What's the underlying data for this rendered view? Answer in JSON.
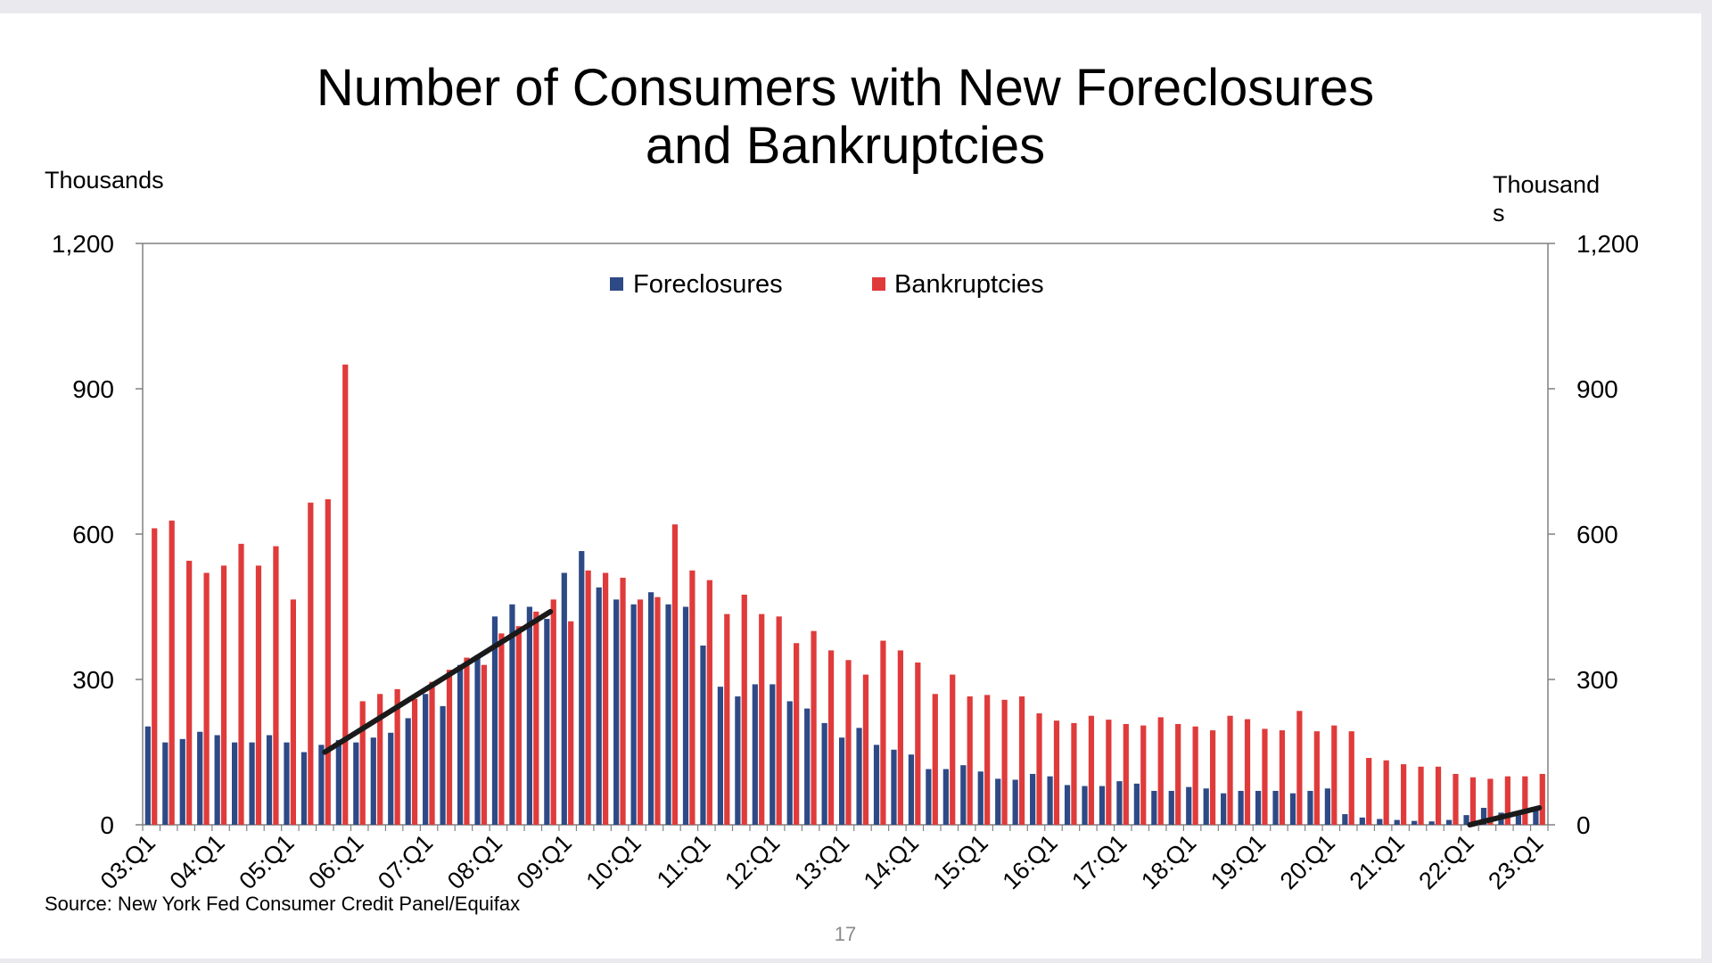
{
  "chart_data": {
    "type": "bar",
    "title_lines": [
      "Number of Consumers with New Foreclosures",
      "and Bankruptcies"
    ],
    "ylabel_left": "Thousands",
    "ylabel_right_lines": [
      "Thousand",
      "s"
    ],
    "ylim": [
      0,
      1200
    ],
    "yticks": [
      0,
      300,
      600,
      900,
      1200
    ],
    "ytick_labels": [
      "0",
      "300",
      "600",
      "900",
      "1,200"
    ],
    "xtick_labels": [
      "03:Q1",
      "04:Q1",
      "05:Q1",
      "06:Q1",
      "07:Q1",
      "08:Q1",
      "09:Q1",
      "10:Q1",
      "11:Q1",
      "12:Q1",
      "13:Q1",
      "14:Q1",
      "15:Q1",
      "16:Q1",
      "17:Q1",
      "18:Q1",
      "19:Q1",
      "20:Q1",
      "21:Q1",
      "22:Q1",
      "23:Q1"
    ],
    "legend_position": "top-center",
    "grid": false,
    "categories": [
      "03:Q1",
      "03:Q2",
      "03:Q3",
      "03:Q4",
      "04:Q1",
      "04:Q2",
      "04:Q3",
      "04:Q4",
      "05:Q1",
      "05:Q2",
      "05:Q3",
      "05:Q4",
      "06:Q1",
      "06:Q2",
      "06:Q3",
      "06:Q4",
      "07:Q1",
      "07:Q2",
      "07:Q3",
      "07:Q4",
      "08:Q1",
      "08:Q2",
      "08:Q3",
      "08:Q4",
      "09:Q1",
      "09:Q2",
      "09:Q3",
      "09:Q4",
      "10:Q1",
      "10:Q2",
      "10:Q3",
      "10:Q4",
      "11:Q1",
      "11:Q2",
      "11:Q3",
      "11:Q4",
      "12:Q1",
      "12:Q2",
      "12:Q3",
      "12:Q4",
      "13:Q1",
      "13:Q2",
      "13:Q3",
      "13:Q4",
      "14:Q1",
      "14:Q2",
      "14:Q3",
      "14:Q4",
      "15:Q1",
      "15:Q2",
      "15:Q3",
      "15:Q4",
      "16:Q1",
      "16:Q2",
      "16:Q3",
      "16:Q4",
      "17:Q1",
      "17:Q2",
      "17:Q3",
      "17:Q4",
      "18:Q1",
      "18:Q2",
      "18:Q3",
      "18:Q4",
      "19:Q1",
      "19:Q2",
      "19:Q3",
      "19:Q4",
      "20:Q1",
      "20:Q2",
      "20:Q3",
      "20:Q4",
      "21:Q1",
      "21:Q2",
      "21:Q3",
      "21:Q4",
      "22:Q1",
      "22:Q2",
      "22:Q3",
      "22:Q4",
      "23:Q1"
    ],
    "series": [
      {
        "name": "Foreclosures",
        "color": "#2e4a86",
        "values": [
          203,
          170,
          177,
          192,
          185,
          170,
          170,
          185,
          170,
          150,
          165,
          175,
          170,
          180,
          190,
          220,
          270,
          245,
          330,
          350,
          430,
          455,
          450,
          425,
          520,
          565,
          490,
          465,
          455,
          480,
          455,
          450,
          370,
          285,
          265,
          290,
          290,
          255,
          240,
          210,
          180,
          200,
          165,
          155,
          145,
          115,
          115,
          123,
          110,
          95,
          93,
          105,
          100,
          82,
          80,
          80,
          90,
          85,
          70,
          70,
          78,
          75,
          65,
          70,
          70,
          70,
          65,
          70,
          75,
          22,
          15,
          12,
          10,
          8,
          7,
          10,
          20,
          35,
          25,
          20,
          30
        ]
      },
      {
        "name": "Bankruptcies",
        "color": "#e03b3b",
        "values": [
          612,
          628,
          545,
          520,
          535,
          580,
          535,
          575,
          465,
          665,
          672,
          950,
          255,
          270,
          280,
          260,
          295,
          320,
          345,
          330,
          395,
          410,
          440,
          465,
          420,
          525,
          520,
          510,
          465,
          470,
          620,
          525,
          505,
          435,
          475,
          435,
          430,
          375,
          400,
          360,
          340,
          310,
          380,
          360,
          335,
          270,
          310,
          265,
          268,
          258,
          265,
          230,
          215,
          210,
          225,
          217,
          208,
          205,
          222,
          208,
          203,
          195,
          225,
          218,
          198,
          195,
          235,
          193,
          205,
          193,
          138,
          133,
          125,
          120,
          120,
          105,
          98,
          95,
          100,
          100,
          105
        ]
      }
    ],
    "annotations": [
      {
        "type": "trend-line",
        "from": {
          "x": "05:Q3",
          "y": 150
        },
        "to": {
          "x": "08:Q4",
          "y": 440
        }
      },
      {
        "type": "trend-line",
        "from": {
          "x": "22:Q1",
          "y": 0
        },
        "to": {
          "x": "23:Q1",
          "y": 35
        }
      }
    ]
  },
  "footer": {
    "source": "Source: New York Fed Consumer Credit Panel/Equifax",
    "page_number": "17"
  }
}
